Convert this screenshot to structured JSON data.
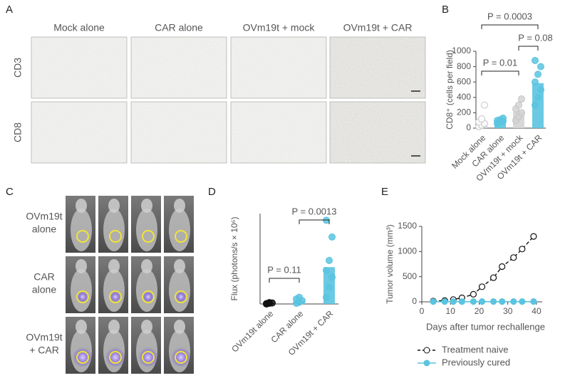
{
  "panels": {
    "letters": [
      "A",
      "B",
      "C",
      "D",
      "E"
    ],
    "a": {
      "columns": [
        "Mock alone",
        "CAR alone",
        "OVm19t + mock",
        "OVm19t + CAR"
      ],
      "rows": [
        "CD3",
        "CD8"
      ]
    },
    "c": {
      "rows": [
        [
          "OVm19t",
          "alone"
        ],
        [
          "CAR",
          "alone"
        ],
        [
          "OVm19t",
          "+ CAR"
        ]
      ]
    }
  },
  "chart_data": [
    {
      "type": "bar",
      "ylabel": "CD8⁺ (cells per field)",
      "categories": [
        "Mock alone",
        "CAR alone",
        "OVm19t + mock",
        "OVm19t + CAR"
      ],
      "values": [
        85,
        100,
        215,
        585
      ],
      "colors": [
        "#d4d4d4",
        "#5bc4e0",
        "#d4d4d4",
        "#5bc4e0"
      ],
      "points": [
        [
          20,
          40,
          60,
          80,
          120,
          300
        ],
        [
          60,
          80,
          90,
          100,
          110,
          130
        ],
        [
          100,
          150,
          200,
          250,
          300,
          380
        ],
        [
          300,
          400,
          500,
          600,
          700,
          800,
          880
        ]
      ],
      "ylim": [
        0,
        1000
      ],
      "yticks": [
        0,
        200,
        400,
        600,
        800,
        1000
      ],
      "annotations": [
        "P = 0.01",
        "P = 0.08",
        "P = 0.0003"
      ]
    },
    {
      "type": "bar",
      "ylabel": "Flux (photons/s × 10⁶)",
      "categories": [
        "OVm19t alone",
        "CAR alone",
        "OVm19t + CAR"
      ],
      "values": [
        0.02,
        0.08,
        1.1
      ],
      "colors": [
        "#111111",
        "#5bc4e0",
        "#5bc4e0"
      ],
      "points": [
        [
          0,
          0.02,
          0.03,
          0.01,
          0.04
        ],
        [
          0.02,
          0.05,
          0.1,
          0.15,
          0.2
        ],
        [
          0.2,
          0.5,
          0.8,
          1.0,
          1.3,
          2.0,
          2.5
        ]
      ],
      "ylim": [
        0,
        2.7
      ],
      "annotations": [
        "P = 0.11",
        "P = 0.0013"
      ]
    },
    {
      "type": "line",
      "xlabel": "Days after tumor rechallenge",
      "ylabel": "Tumor volume (mm³)",
      "x": [
        4,
        8,
        11,
        14,
        18,
        21,
        25,
        28,
        32,
        35,
        39
      ],
      "series": [
        {
          "name": "Treatment naive",
          "color": "#111111",
          "values": [
            15,
            25,
            45,
            80,
            150,
            300,
            480,
            700,
            880,
            1050,
            1300
          ]
        },
        {
          "name": "Previously cured",
          "color": "#5bc4e0",
          "values": [
            5,
            5,
            5,
            5,
            5,
            5,
            5,
            5,
            5,
            5,
            5
          ]
        }
      ],
      "xlim": [
        0,
        42
      ],
      "xticks": [
        0,
        10,
        20,
        30,
        40
      ],
      "ylim": [
        0,
        1500
      ],
      "yticks": [
        0,
        500,
        1000,
        1500
      ]
    }
  ]
}
